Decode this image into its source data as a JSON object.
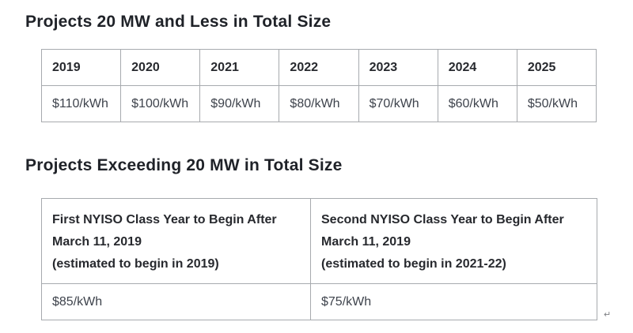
{
  "section1": {
    "title": "Projects 20 MW and Less in Total Size",
    "table": {
      "headers": [
        "2019",
        "2020",
        "2021",
        "2022",
        "2023",
        "2024",
        "2025"
      ],
      "values": [
        "$110/kWh",
        "$100/kWh",
        "$90/kWh",
        "$80/kWh",
        "$70/kWh",
        "$60/kWh",
        "$50/kWh"
      ]
    }
  },
  "section2": {
    "title": "Projects Exceeding 20 MW in Total Size",
    "table": {
      "headers": [
        [
          "First NYISO Class Year to Begin After",
          "March 11, 2019",
          "(estimated to begin in 2019)"
        ],
        [
          "Second NYISO Class Year to Begin After",
          "March 11, 2019",
          "(estimated to begin in 2021-22)"
        ]
      ],
      "values": [
        "$85/kWh",
        "$75/kWh"
      ]
    }
  },
  "return_mark": "↵",
  "colors": {
    "background": "#ffffff",
    "title_text": "#1f2228",
    "header_text": "#27292e",
    "value_text": "#3e434c",
    "table_border": "#a7aaae"
  }
}
